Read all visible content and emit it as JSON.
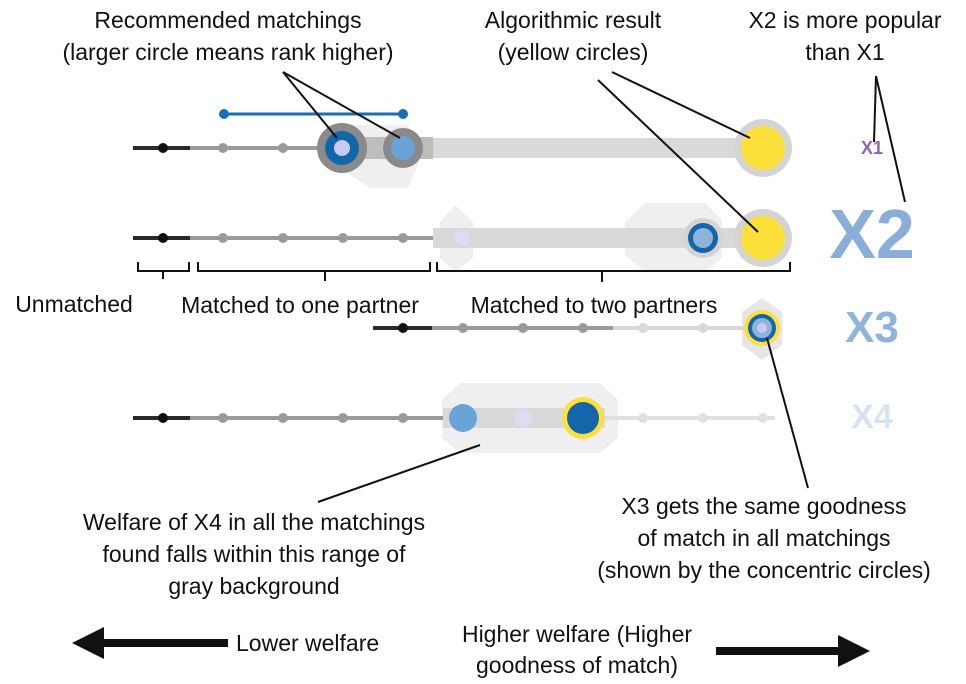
{
  "annotations": {
    "recommended": [
      "Recommended matchings",
      "(larger circle means rank higher)"
    ],
    "algorithmic": [
      "Algorithmic result",
      "(yellow circles)"
    ],
    "popular": [
      "X2 is more popular",
      "than X1"
    ],
    "unmatched": "Unmatched",
    "one_partner": "Matched to one partner",
    "two_partners": "Matched to two partners",
    "welfare_x4": [
      "Welfare of X4 in all the matchings",
      "found falls within this range of",
      "gray background"
    ],
    "x3_same": [
      "X3 gets the same goodness",
      "of match in all matchings",
      "(shown by the concentric circles)"
    ],
    "lower_welfare": "Lower welfare",
    "higher_welfare": [
      "Higher welfare (Higher",
      "goodness of match)"
    ]
  },
  "rows": [
    {
      "name": "X1",
      "color": "#8f65b4"
    },
    {
      "name": "X2",
      "color": "#8aaed8"
    },
    {
      "name": "X3",
      "color": "#8fb3db"
    },
    {
      "name": "X4",
      "color": "#d6e3f0"
    }
  ],
  "colors": {
    "yellow": "#fde03a",
    "dark_blue": "#1466aa",
    "light_blue": "#6aa3d6",
    "lavender": "#c8cbee",
    "band": "#d9d9d9",
    "range": "#efefef",
    "track": "#2a2a2a",
    "rec_line": "#1a6fb4"
  }
}
